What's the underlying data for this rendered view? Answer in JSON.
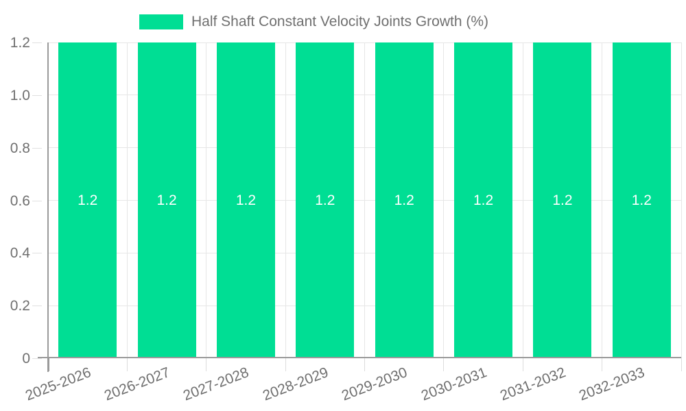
{
  "legend": {
    "label": "Half Shaft Constant Velocity Joints Growth (%)"
  },
  "chart_data": {
    "type": "bar",
    "title": "Half Shaft Constant Velocity Joints Growth (%)",
    "categories": [
      "2025-2026",
      "2026-2027",
      "2027-2028",
      "2028-2029",
      "2029-2030",
      "2030-2031",
      "2031-2032",
      "2032-2033"
    ],
    "values": [
      1.2,
      1.2,
      1.2,
      1.2,
      1.2,
      1.2,
      1.2,
      1.2
    ],
    "bar_labels": [
      "1.2",
      "1.2",
      "1.2",
      "1.2",
      "1.2",
      "1.2",
      "1.2",
      "1.2"
    ],
    "series": [
      {
        "name": "Half Shaft Constant Velocity Joints Growth (%)",
        "values": [
          1.2,
          1.2,
          1.2,
          1.2,
          1.2,
          1.2,
          1.2,
          1.2
        ]
      }
    ],
    "xlabel": "",
    "ylabel": "",
    "ylim": [
      0,
      1.2
    ],
    "y_ticks": [
      "0",
      "0.2",
      "0.4",
      "0.6",
      "0.8",
      "1.0",
      "1.2"
    ],
    "grid": true,
    "legend_position": "top",
    "colors": {
      "bar": "#00de94",
      "bar_label_text": "#ffffff",
      "axis_line": "#9a9a9a",
      "gridline": "#e6e6e6",
      "tick": "#dcdcdc",
      "label_text": "#6f6f6f"
    }
  }
}
